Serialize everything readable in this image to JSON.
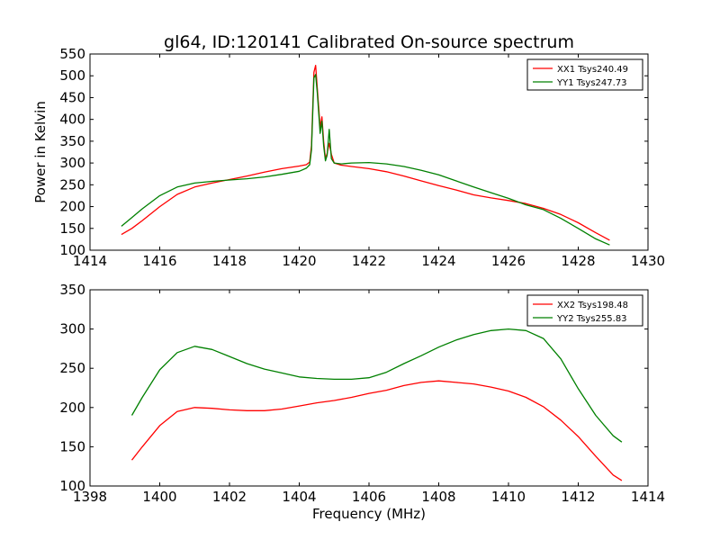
{
  "title": "gl64, ID:120141 Calibrated On-source spectrum",
  "chart_data": [
    {
      "type": "line",
      "xlim": [
        1414,
        1430
      ],
      "ylim": [
        100,
        550
      ],
      "xticks": [
        "1414",
        "1416",
        "1418",
        "1420",
        "1422",
        "1424",
        "1426",
        "1428",
        "1430"
      ],
      "yticks": [
        "100",
        "150",
        "200",
        "250",
        "300",
        "350",
        "400",
        "450",
        "500",
        "550"
      ],
      "xlabel": "",
      "ylabel": "Power in Kelvin",
      "legend_position": "top-right",
      "grid": false,
      "series": [
        {
          "name": "XX1 Tsys240.49",
          "color": "#ff0000",
          "x": [
            1414.9,
            1415.2,
            1415.5,
            1416.0,
            1416.5,
            1417.0,
            1417.5,
            1418.0,
            1418.5,
            1419.0,
            1419.5,
            1420.0,
            1420.2,
            1420.3,
            1420.35,
            1420.42,
            1420.47,
            1420.52,
            1420.6,
            1420.65,
            1420.7,
            1420.75,
            1420.8,
            1420.86,
            1420.92,
            1421.0,
            1421.2,
            1421.5,
            1422.0,
            1422.5,
            1423.0,
            1423.5,
            1424.0,
            1424.5,
            1425.0,
            1425.5,
            1426.0,
            1426.5,
            1427.0,
            1427.5,
            1428.0,
            1428.5,
            1428.9
          ],
          "values": [
            136,
            150,
            168,
            200,
            228,
            245,
            254,
            262,
            270,
            279,
            287,
            293,
            296,
            302,
            340,
            508,
            524,
            470,
            382,
            406,
            350,
            310,
            322,
            345,
            320,
            300,
            295,
            292,
            287,
            280,
            270,
            259,
            248,
            238,
            227,
            220,
            214,
            207,
            196,
            182,
            163,
            140,
            123
          ]
        },
        {
          "name": "YY1 Tsys247.73",
          "color": "#008000",
          "x": [
            1414.9,
            1415.2,
            1415.5,
            1416.0,
            1416.5,
            1417.0,
            1417.5,
            1418.0,
            1418.5,
            1419.0,
            1419.5,
            1420.0,
            1420.2,
            1420.3,
            1420.35,
            1420.42,
            1420.47,
            1420.52,
            1420.6,
            1420.65,
            1420.7,
            1420.75,
            1420.8,
            1420.86,
            1420.92,
            1421.0,
            1421.2,
            1421.5,
            1422.0,
            1422.5,
            1423.0,
            1423.5,
            1424.0,
            1424.5,
            1425.0,
            1425.5,
            1426.0,
            1426.5,
            1427.0,
            1427.5,
            1428.0,
            1428.5,
            1428.9
          ],
          "values": [
            155,
            175,
            195,
            225,
            245,
            254,
            258,
            261,
            264,
            268,
            274,
            281,
            288,
            296,
            330,
            495,
            503,
            460,
            368,
            396,
            340,
            305,
            318,
            377,
            310,
            300,
            298,
            300,
            301,
            298,
            292,
            283,
            273,
            259,
            245,
            232,
            219,
            204,
            193,
            173,
            150,
            126,
            112
          ]
        }
      ]
    },
    {
      "type": "line",
      "xlim": [
        1398,
        1414
      ],
      "ylim": [
        100,
        350
      ],
      "xticks": [
        "1398",
        "1400",
        "1402",
        "1404",
        "1406",
        "1408",
        "1410",
        "1412",
        "1414"
      ],
      "yticks": [
        "100",
        "150",
        "200",
        "250",
        "300",
        "350"
      ],
      "xlabel": "Frequency (MHz)",
      "ylabel": "",
      "legend_position": "top-right",
      "grid": false,
      "series": [
        {
          "name": "XX2 Tsys198.48",
          "color": "#ff0000",
          "x": [
            1399.2,
            1399.5,
            1400.0,
            1400.5,
            1401.0,
            1401.5,
            1402.0,
            1402.5,
            1403.0,
            1403.5,
            1404.0,
            1404.5,
            1405.0,
            1405.5,
            1406.0,
            1406.5,
            1407.0,
            1407.5,
            1408.0,
            1408.5,
            1409.0,
            1409.5,
            1410.0,
            1410.5,
            1411.0,
            1411.5,
            1412.0,
            1412.5,
            1413.0,
            1413.25
          ],
          "values": [
            133,
            150,
            177,
            195,
            200,
            199,
            197,
            196,
            196,
            198,
            202,
            206,
            209,
            213,
            218,
            222,
            228,
            232,
            234,
            232,
            230,
            226,
            221,
            213,
            201,
            184,
            163,
            138,
            114,
            107
          ]
        },
        {
          "name": "YY2 Tsys255.83",
          "color": "#008000",
          "x": [
            1399.2,
            1399.5,
            1400.0,
            1400.5,
            1401.0,
            1401.5,
            1402.0,
            1402.5,
            1403.0,
            1403.5,
            1404.0,
            1404.5,
            1405.0,
            1405.5,
            1406.0,
            1406.5,
            1407.0,
            1407.5,
            1408.0,
            1408.5,
            1409.0,
            1409.5,
            1410.0,
            1410.5,
            1411.0,
            1411.5,
            1412.0,
            1412.5,
            1413.0,
            1413.25
          ],
          "values": [
            190,
            213,
            248,
            270,
            278,
            274,
            265,
            256,
            249,
            244,
            239,
            237,
            236,
            236,
            238,
            245,
            256,
            266,
            277,
            286,
            293,
            298,
            300,
            298,
            288,
            262,
            224,
            190,
            164,
            156
          ]
        }
      ]
    }
  ]
}
